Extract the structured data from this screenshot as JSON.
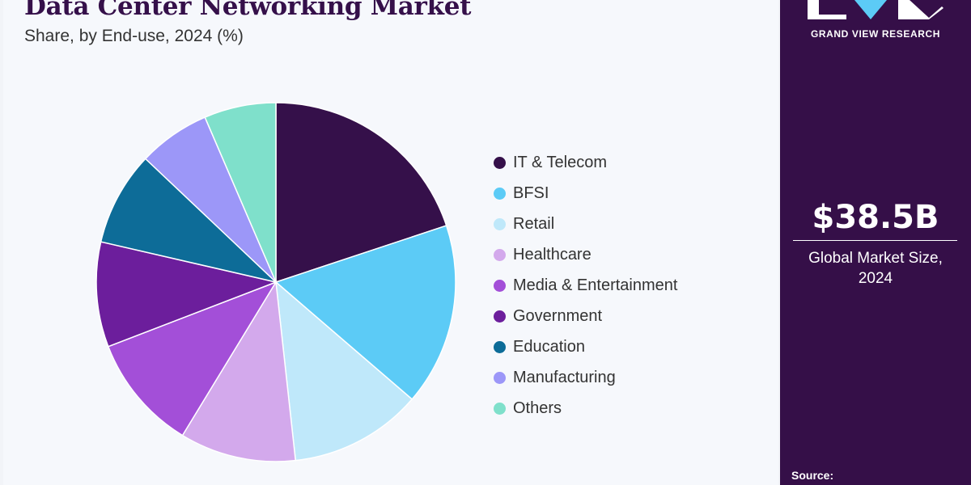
{
  "chart_data": {
    "type": "pie",
    "title": "Data Center Networking Market",
    "subtitle": "Share, by End-use, 2024 (%)",
    "legend_position": "right",
    "categories": [
      "IT & Telecom",
      "BFSI",
      "Retail",
      "Healthcare",
      "Media & Entertainment",
      "Government",
      "Education",
      "Manufacturing",
      "Others"
    ],
    "values": [
      20,
      16.5,
      12,
      10.5,
      10.5,
      9.5,
      8.5,
      6.5,
      6.5
    ],
    "colors": [
      "#35104a",
      "#5ccbf6",
      "#bfe8fa",
      "#d3a9ec",
      "#a34fd8",
      "#6c1e9c",
      "#0d6c98",
      "#9c97f8",
      "#7fe0cb"
    ]
  },
  "sidebar": {
    "brand": "GRAND VIEW RESEARCH",
    "logo_icon": "gvr-logo-icon",
    "market_size_value": "$38.5B",
    "market_size_label_line1": "Global Market Size,",
    "market_size_label_line2": "2024",
    "source_label": "Source:"
  }
}
